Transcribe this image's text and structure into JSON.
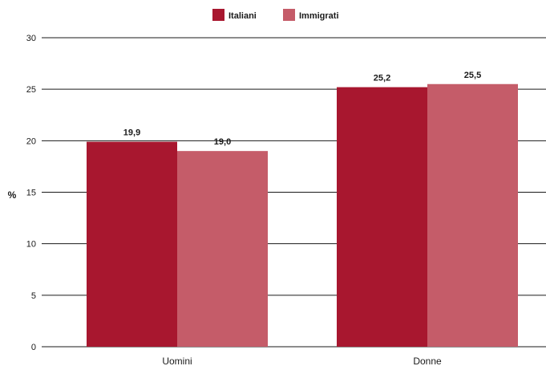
{
  "chart_data": {
    "type": "bar",
    "categories": [
      "Uomini",
      "Donne"
    ],
    "series": [
      {
        "name": "Italiani",
        "values": [
          19.9,
          25.2
        ],
        "labels": [
          "19,9",
          "25,2"
        ],
        "color": "#a8172f"
      },
      {
        "name": "Immigrati",
        "values": [
          19.0,
          25.5
        ],
        "labels": [
          "19,0",
          "25,5"
        ],
        "color": "#c55c69"
      }
    ],
    "ylabel": "%",
    "ylim": [
      0,
      30
    ],
    "yticks": [
      0,
      5,
      10,
      15,
      20,
      25,
      30
    ],
    "grid": true,
    "legend_position": "top-center"
  }
}
